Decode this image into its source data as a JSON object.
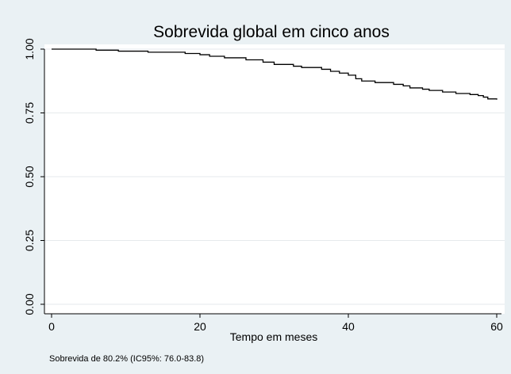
{
  "chart_data": {
    "type": "line",
    "title": "Sobrevida global em cinco anos",
    "xlabel": "Tempo em meses",
    "ylabel": "",
    "note": "Sobrevida de 80.2% (IC95%: 76.0-83.8)",
    "xlim": [
      0,
      60
    ],
    "ylim": [
      0,
      1
    ],
    "x_ticks": [
      0,
      20,
      40,
      60
    ],
    "y_ticks": [
      "0.00",
      "0.25",
      "0.50",
      "0.75",
      "1.00"
    ],
    "grid": true,
    "legend": "none",
    "step": true,
    "series": [
      {
        "x": [
          0,
          6,
          9,
          13,
          18,
          20,
          21.3,
          23.3,
          26.2,
          28.5,
          30,
          32.6,
          33.7,
          36.4,
          37.6,
          38.8,
          40,
          41,
          41.8,
          43.6,
          46.1,
          47.4,
          48.3,
          50,
          50.9,
          52.7,
          54.5,
          56.4,
          57.5,
          58.2,
          58.8,
          60
        ],
        "y": [
          1.0,
          0.996,
          0.992,
          0.988,
          0.983,
          0.978,
          0.972,
          0.966,
          0.958,
          0.949,
          0.94,
          0.933,
          0.928,
          0.921,
          0.913,
          0.906,
          0.898,
          0.884,
          0.875,
          0.869,
          0.862,
          0.856,
          0.848,
          0.843,
          0.838,
          0.832,
          0.826,
          0.822,
          0.818,
          0.812,
          0.805,
          0.802
        ]
      }
    ],
    "colors": {
      "background": "#eaf1f4",
      "plot_background": "#ffffff",
      "line": "#000000",
      "grid": "#e6eaec"
    }
  }
}
